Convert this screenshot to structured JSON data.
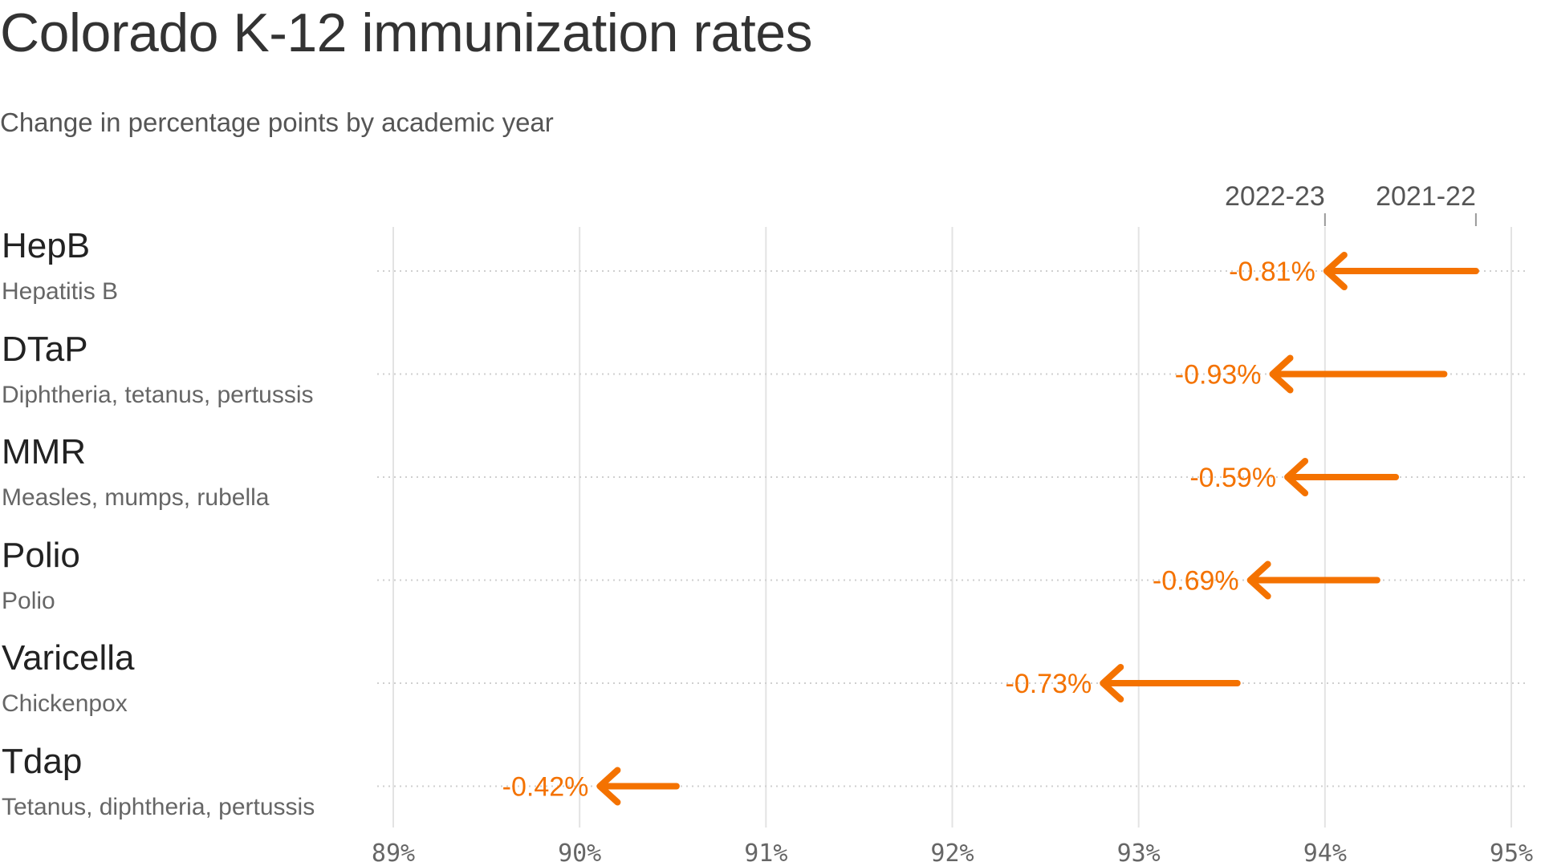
{
  "header": {
    "title": "Colorado K-12 immunization rates",
    "subtitle": "Change in percentage points by academic year"
  },
  "chart_data": {
    "type": "arrow",
    "title": "Colorado K-12 immunization rates",
    "subtitle": "Change in percentage points by academic year",
    "xlim": [
      89,
      95
    ],
    "x_ticks": [
      89,
      90,
      91,
      92,
      93,
      94,
      95
    ],
    "x_tick_labels": [
      "89%",
      "90%",
      "91%",
      "92%",
      "93%",
      "94%",
      "95%"
    ],
    "grid": true,
    "legend": {
      "placement": "top-right",
      "from_label": "2021-22",
      "to_label": "2022-23",
      "from_value": 94.81,
      "to_value": 94.0
    },
    "series": [
      {
        "name": "2021-22",
        "values": [
          94.81,
          94.64,
          94.38,
          94.28,
          93.53,
          90.52
        ]
      },
      {
        "name": "2022-23",
        "values": [
          94.0,
          93.71,
          93.79,
          93.59,
          92.8,
          90.1
        ]
      }
    ],
    "rows": [
      {
        "name": "HepB",
        "description": "Hepatitis B",
        "from": 94.81,
        "to": 94.0,
        "label": "-0.81%"
      },
      {
        "name": "DTaP",
        "description": "Diphtheria, tetanus, pertussis",
        "from": 94.64,
        "to": 93.71,
        "label": "-0.93%"
      },
      {
        "name": "MMR",
        "description": "Measles, mumps, rubella",
        "from": 94.38,
        "to": 93.79,
        "label": "-0.59%"
      },
      {
        "name": "Polio",
        "description": "Polio",
        "from": 94.28,
        "to": 93.59,
        "label": "-0.69%"
      },
      {
        "name": "Varicella",
        "description": "Chickenpox",
        "from": 93.53,
        "to": 92.8,
        "label": "-0.73%"
      },
      {
        "name": "Tdap",
        "description": "Tetanus, diphtheria, pertussis",
        "from": 90.52,
        "to": 90.1,
        "label": "-0.42%"
      }
    ],
    "colors": {
      "arrow": "#f47200",
      "grid": "#e3e3e3",
      "tick": "#666666"
    }
  }
}
